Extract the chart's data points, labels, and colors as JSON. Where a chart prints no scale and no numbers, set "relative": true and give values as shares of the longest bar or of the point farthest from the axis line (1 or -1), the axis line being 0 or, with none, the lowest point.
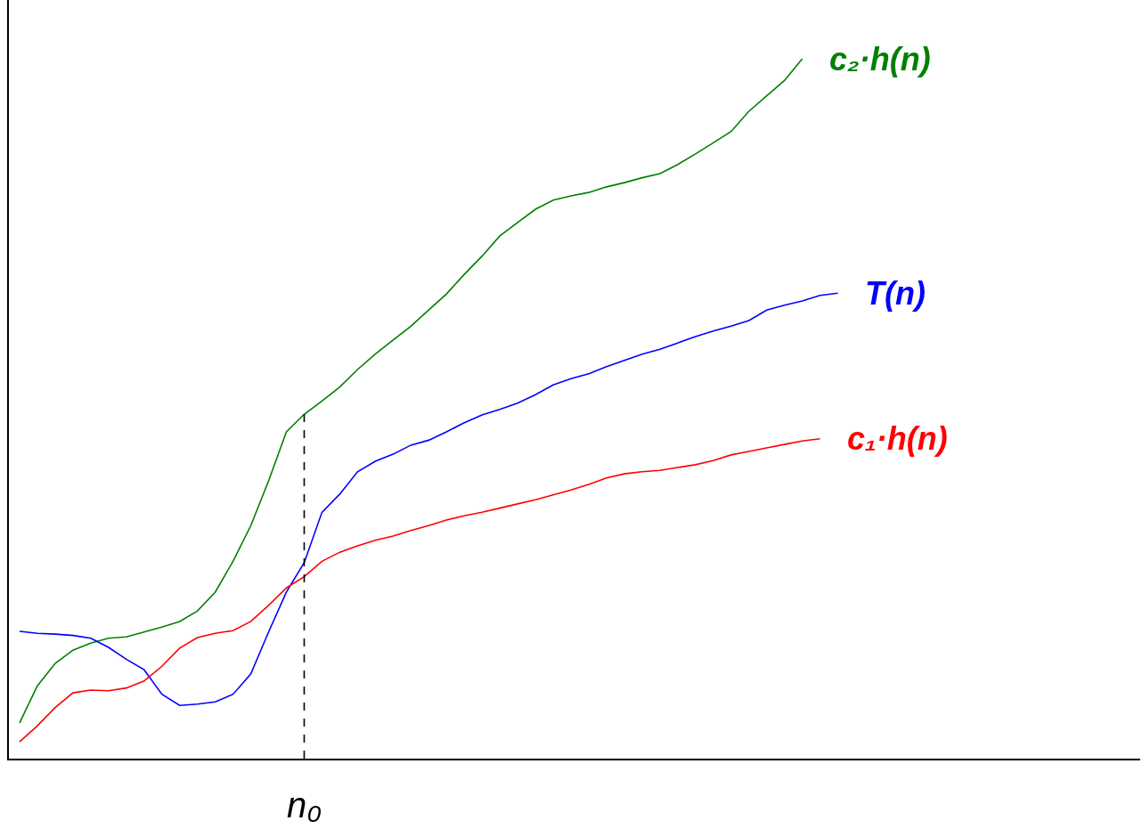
{
  "chart_data": {
    "type": "line",
    "relative": true,
    "legend": false,
    "marker": "none",
    "line_style": "solid",
    "categories": [
      null,
      null,
      null,
      null,
      null,
      null,
      null,
      null,
      null,
      null,
      null,
      null,
      null,
      null,
      null,
      null,
      null,
      null,
      null,
      null,
      null,
      null,
      null,
      null,
      null,
      null,
      null,
      null,
      null,
      null,
      null,
      null,
      null,
      null,
      null,
      null,
      null,
      null,
      null,
      null,
      null,
      null,
      null,
      null,
      null,
      null,
      null
    ],
    "series": [
      {
        "name": "c₂·h(n)",
        "color": "#008000",
        "values": [
          0.051,
          0.104,
          0.136,
          0.155,
          0.165,
          0.172,
          0.174,
          0.181,
          0.188,
          0.196,
          0.211,
          0.238,
          0.282,
          0.333,
          0.397,
          0.467,
          0.492,
          0.511,
          0.531,
          0.556,
          0.578,
          0.598,
          0.618,
          0.641,
          0.664,
          0.692,
          0.718,
          0.747,
          0.766,
          0.785,
          0.798,
          0.804,
          0.809,
          0.817,
          0.823,
          0.83,
          0.836,
          0.849,
          0.864,
          0.88,
          0.896,
          0.925,
          0.947,
          0.969,
          1.0,
          null,
          null
        ]
      },
      {
        "name": "T(n)",
        "color": "#0000ff",
        "values": [
          0.182,
          0.179,
          0.178,
          0.176,
          0.172,
          0.159,
          0.142,
          0.127,
          0.092,
          0.076,
          0.078,
          0.081,
          0.092,
          0.121,
          0.181,
          0.238,
          0.28,
          0.352,
          0.378,
          0.41,
          0.425,
          0.435,
          0.448,
          0.455,
          0.467,
          0.48,
          0.491,
          0.499,
          0.508,
          0.52,
          0.534,
          0.543,
          0.55,
          0.56,
          0.569,
          0.578,
          0.585,
          0.594,
          0.603,
          0.611,
          0.618,
          0.626,
          0.641,
          0.648,
          0.654,
          0.662,
          0.665
        ]
      },
      {
        "name": "c₁·h(n)",
        "color": "#ff0000",
        "values": [
          0.024,
          0.047,
          0.073,
          0.094,
          0.098,
          0.097,
          0.101,
          0.111,
          0.132,
          0.158,
          0.173,
          0.179,
          0.183,
          0.196,
          0.219,
          0.244,
          0.26,
          0.282,
          0.295,
          0.304,
          0.312,
          0.318,
          0.326,
          0.333,
          0.341,
          0.347,
          0.352,
          0.358,
          0.364,
          0.37,
          0.377,
          0.384,
          0.392,
          0.401,
          0.407,
          0.41,
          0.412,
          0.416,
          0.42,
          0.426,
          0.434,
          0.439,
          0.444,
          0.449,
          0.454,
          0.457,
          null
        ]
      }
    ],
    "annotations": [
      "n₀"
    ]
  }
}
